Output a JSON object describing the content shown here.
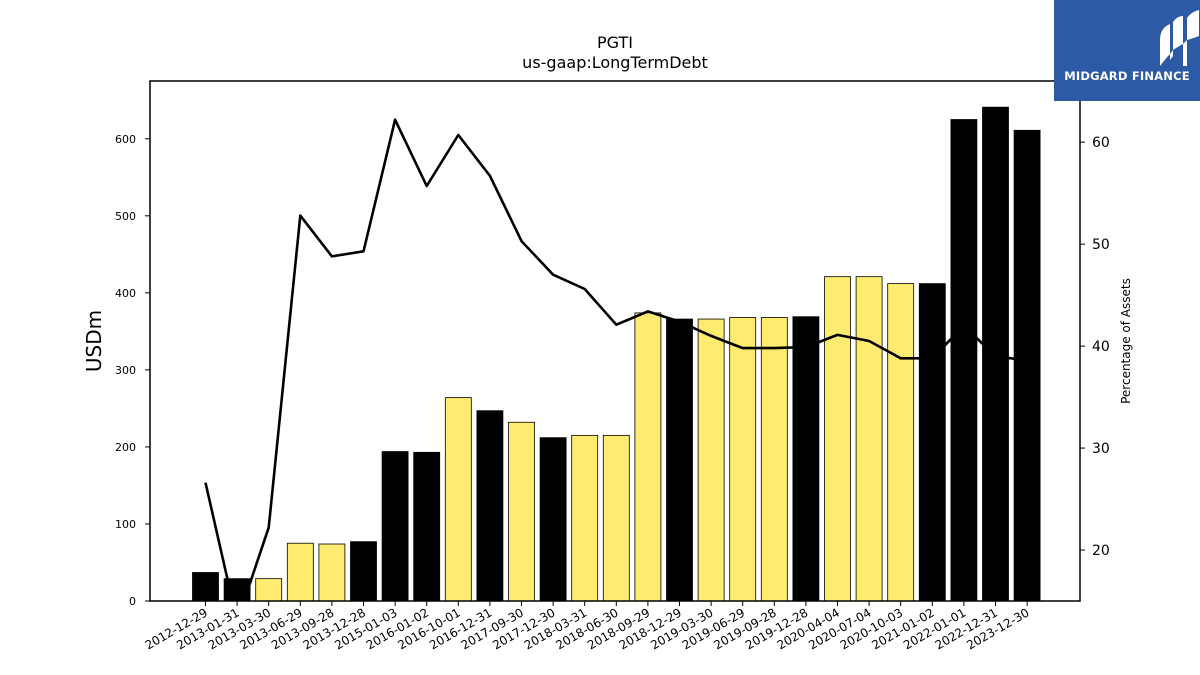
{
  "brand": {
    "name": "MIDGARD FINANCE",
    "background": "#2d5aa6",
    "logo_icon": "midgard-m-icon"
  },
  "colors": {
    "bar_highlight": "#ffeb70",
    "bar_default": "#000000",
    "line": "#000000"
  },
  "chart_data": {
    "type": "bar",
    "title": "PGTI",
    "subtitle": "us-gaap:LongTermDebt",
    "ylabel": "USDm",
    "y2label": "Percentage of Assets",
    "ylim": [
      0,
      675
    ],
    "y2lim": [
      15,
      66
    ],
    "yticks": [
      0,
      100,
      200,
      300,
      400,
      500,
      600
    ],
    "y2ticks": [
      20,
      30,
      40,
      50,
      60
    ],
    "categories": [
      "2012-12-29",
      "2013-01-31",
      "2013-03-30",
      "2013-06-29",
      "2013-09-28",
      "2013-12-28",
      "2015-01-03",
      "2016-01-02",
      "2016-10-01",
      "2016-12-31",
      "2017-09-30",
      "2017-12-30",
      "2018-03-31",
      "2018-06-30",
      "2018-09-29",
      "2018-12-29",
      "2019-03-30",
      "2019-06-29",
      "2019-09-28",
      "2019-12-28",
      "2020-04-04",
      "2020-07-04",
      "2020-10-03",
      "2021-01-02",
      "2022-01-01",
      "2022-12-31",
      "2023-12-30"
    ],
    "series": [
      {
        "type": "bar",
        "values": [
          37,
          29,
          29,
          75,
          74,
          77,
          194,
          193,
          264,
          247,
          232,
          212,
          215,
          215,
          374,
          366,
          366,
          368,
          368,
          369,
          421,
          421,
          412,
          412,
          625,
          641,
          611
        ],
        "highlight": [
          false,
          false,
          true,
          true,
          true,
          false,
          false,
          false,
          true,
          false,
          true,
          false,
          true,
          true,
          true,
          false,
          true,
          true,
          true,
          false,
          true,
          true,
          true,
          false,
          false,
          false,
          false
        ]
      },
      {
        "type": "line",
        "axis": "right",
        "values": [
          26.6,
          13.0,
          22.2,
          52.8,
          48.8,
          49.3,
          62.2,
          55.7,
          60.7,
          56.7,
          50.3,
          47.0,
          45.6,
          42.1,
          43.4,
          42.4,
          41.0,
          39.8,
          39.8,
          39.9,
          41.1,
          40.5,
          38.8,
          38.8,
          42.0,
          39.0,
          38.6
        ]
      }
    ],
    "grid": false,
    "legend": "none"
  }
}
